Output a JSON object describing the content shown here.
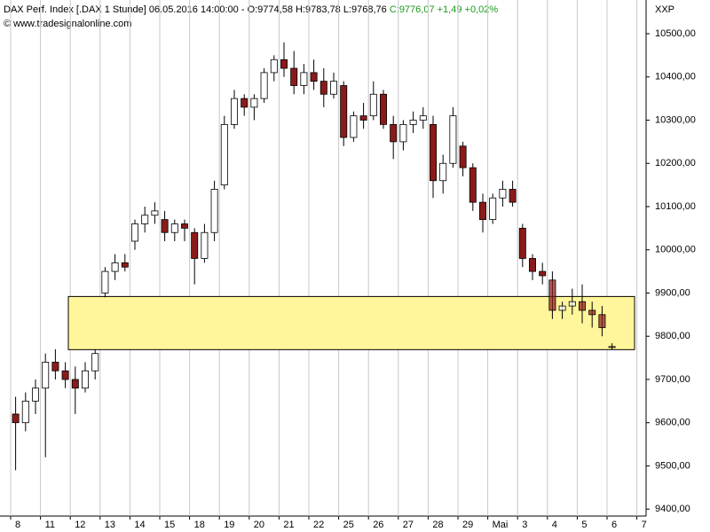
{
  "chart_data": {
    "type": "candlestick",
    "title": "DAX Perf. Index [.DAX  1 Stunde] 06.05.2016 14:00:00 - O:9774,58 H:9783,78 L:9768,76",
    "title_change": "C:9776,07 +1,49 +0,02%",
    "source": "© www.tradesignalonline.com",
    "axis_label": "XXP",
    "x_labels": [
      "8",
      "11",
      "12",
      "13",
      "14",
      "15",
      "18",
      "19",
      "20",
      "21",
      "22",
      "25",
      "26",
      "27",
      "28",
      "29",
      "Mai",
      "3",
      "4",
      "5",
      "6",
      "7"
    ],
    "open": [
      9620,
      9600,
      9650,
      9680,
      9740,
      9720,
      9700,
      9680,
      9720,
      9900,
      9950,
      9970,
      10020,
      10060,
      10080,
      10070,
      10040,
      10060,
      10040,
      9980,
      10040,
      10150,
      10290,
      10350,
      10330,
      10350,
      10410,
      10440,
      10420,
      10380,
      10410,
      10390,
      10360,
      10380,
      10260,
      10310,
      10310,
      10360,
      10290,
      10250,
      10290,
      10300,
      10290,
      10160,
      10200,
      10240,
      10190,
      10110,
      10070,
      10120,
      10140,
      10050,
      9980,
      9950,
      9930,
      9860,
      9870,
      9880,
      9860,
      9850,
      9774.58
    ],
    "high": [
      9660,
      9670,
      9700,
      9760,
      9770,
      9740,
      9730,
      9740,
      9770,
      9960,
      9990,
      9990,
      10070,
      10100,
      10110,
      10090,
      10070,
      10070,
      10050,
      10060,
      10160,
      10310,
      10370,
      10360,
      10360,
      10420,
      10450,
      10480,
      10460,
      10430,
      10440,
      10420,
      10410,
      10390,
      10320,
      10340,
      10390,
      10370,
      10310,
      10300,
      10320,
      10330,
      10310,
      10220,
      10330,
      10250,
      10200,
      10130,
      10130,
      10160,
      10160,
      10060,
      9990,
      9970,
      9950,
      9880,
      9910,
      9920,
      9880,
      9870,
      9783.78
    ],
    "low": [
      9490,
      9580,
      9620,
      9520,
      9700,
      9680,
      9620,
      9670,
      9700,
      9890,
      9930,
      9950,
      10000,
      10040,
      10060,
      10020,
      10020,
      10020,
      9920,
      9970,
      10020,
      10140,
      10280,
      10310,
      10300,
      10340,
      10390,
      10400,
      10360,
      10360,
      10370,
      10330,
      10350,
      10240,
      10250,
      10280,
      10300,
      10280,
      10210,
      10230,
      10270,
      10280,
      10120,
      10130,
      10190,
      10170,
      10090,
      10040,
      10060,
      10100,
      10100,
      9960,
      9930,
      9920,
      9840,
      9840,
      9850,
      9830,
      9820,
      9800,
      9768.76
    ],
    "close": [
      9600,
      9650,
      9680,
      9740,
      9720,
      9700,
      9680,
      9720,
      9760,
      9950,
      9970,
      9960,
      10060,
      10080,
      10090,
      10040,
      10060,
      10050,
      9980,
      10040,
      10140,
      10290,
      10350,
      10330,
      10350,
      10410,
      10440,
      10420,
      10380,
      10410,
      10390,
      10360,
      10390,
      10260,
      10310,
      10300,
      10360,
      10290,
      10250,
      10290,
      10300,
      10310,
      10160,
      10200,
      10310,
      10190,
      10110,
      10070,
      10120,
      10140,
      10110,
      9980,
      9950,
      9940,
      9860,
      9870,
      9880,
      9860,
      9850,
      9820,
      9776.07
    ],
    "zone": [
      9769,
      9892
    ],
    "zone_color": "#fff59a",
    "up_color": "#ffffff",
    "down_color": "#8b1a1a",
    "ylim": [
      9384,
      10578
    ],
    "yticks": [
      {
        "value": 9400,
        "label": "9400,00"
      },
      {
        "value": 9500,
        "label": "9500,00"
      },
      {
        "value": 9600,
        "label": "9600,00"
      },
      {
        "value": 9700,
        "label": "9700,00"
      },
      {
        "value": 9800,
        "label": "9800,00"
      },
      {
        "value": 9900,
        "label": "9900,00"
      },
      {
        "value": 10000,
        "label": "10000,00"
      },
      {
        "value": 10100,
        "label": "10100,00"
      },
      {
        "value": 10200,
        "label": "10200,00"
      },
      {
        "value": 10300,
        "label": "10300,00"
      },
      {
        "value": 10400,
        "label": "10400,00"
      },
      {
        "value": 10500,
        "label": "10500,00"
      }
    ],
    "grid": true
  }
}
